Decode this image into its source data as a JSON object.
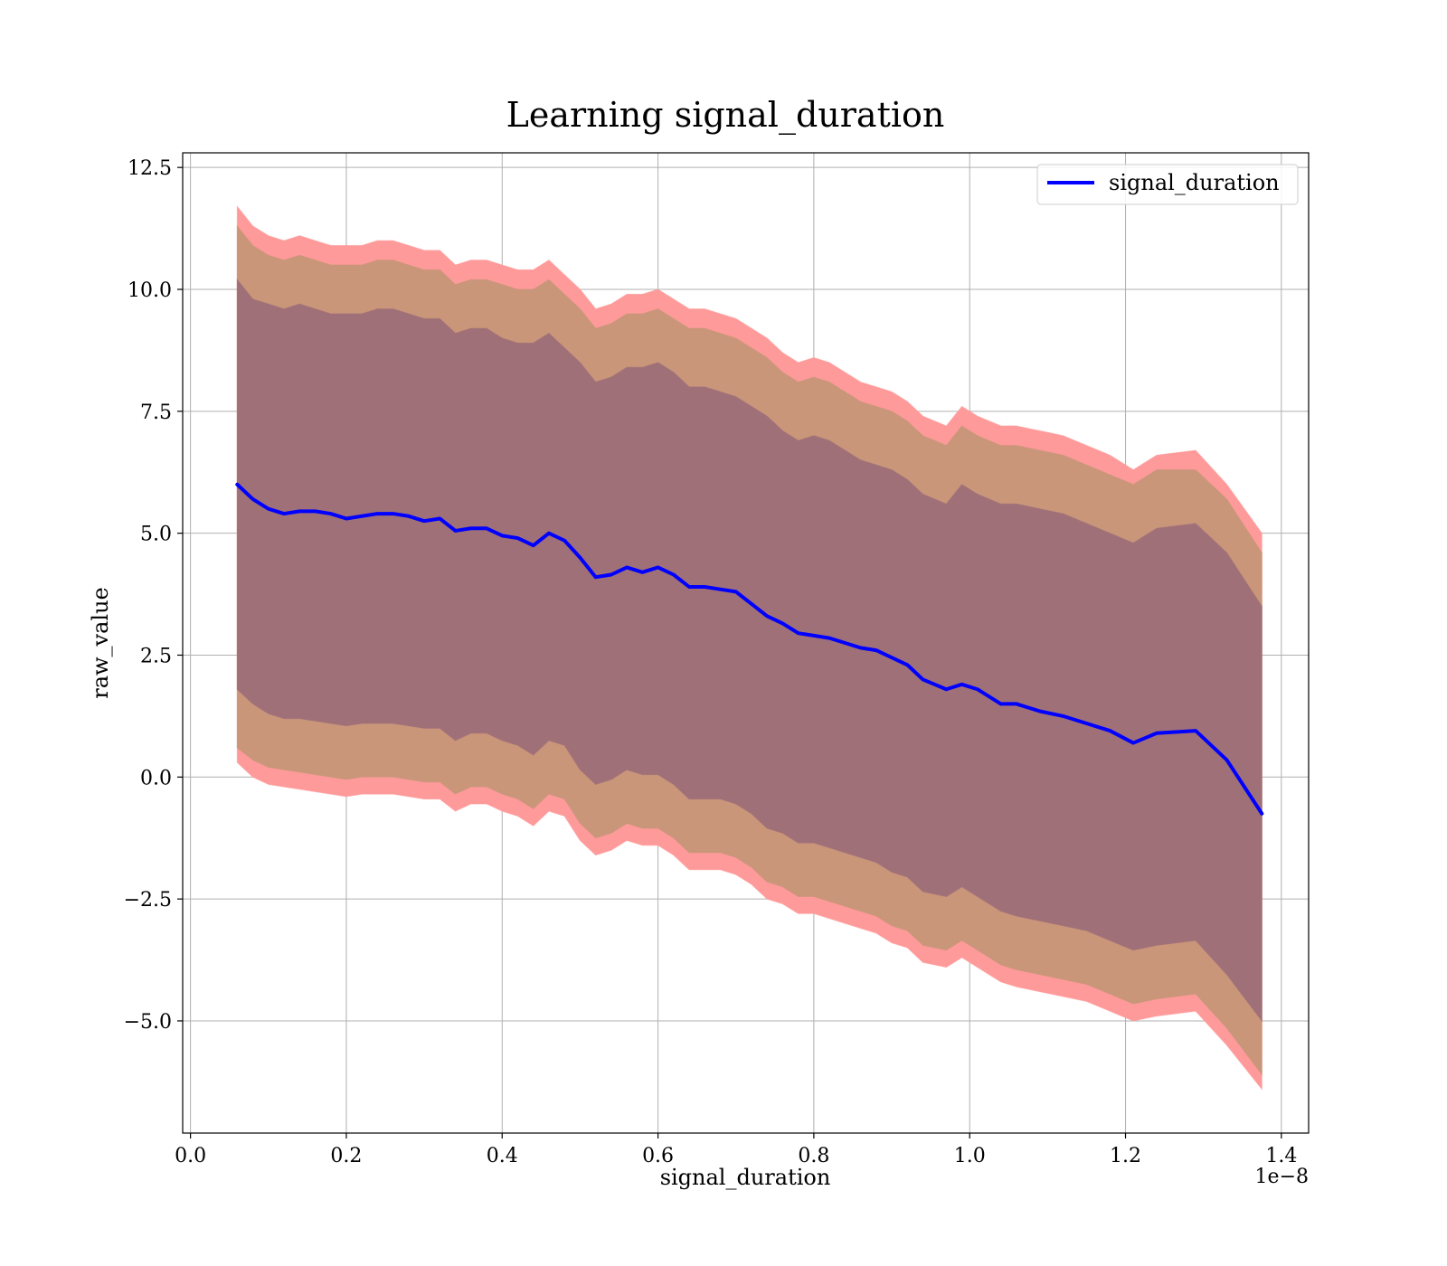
{
  "chart_data": {
    "type": "line",
    "title": "Learning signal_duration",
    "xlabel": "signal_duration",
    "ylabel": "raw_value",
    "x_offset_label": "1e−8",
    "xlim": [
      -0.01,
      1.435
    ],
    "ylim": [
      -7.3,
      12.8
    ],
    "x_ticks": [
      0.0,
      0.2,
      0.4,
      0.6,
      0.8,
      1.0,
      1.2,
      1.4
    ],
    "x_tick_labels": [
      "0.0",
      "0.2",
      "0.4",
      "0.6",
      "0.8",
      "1.0",
      "1.2",
      "1.4"
    ],
    "y_ticks": [
      -5.0,
      -2.5,
      0.0,
      2.5,
      5.0,
      7.5,
      10.0,
      12.5
    ],
    "y_tick_labels": [
      "−5.0",
      "−2.5",
      "0.0",
      "2.5",
      "5.0",
      "7.5",
      "10.0",
      "12.5"
    ],
    "grid": true,
    "legend_position": "top-right",
    "colors": {
      "line": "#0000ff",
      "band_outer": "#ff9a9a",
      "band_middle": "#c9967a",
      "band_inner": "#a07078"
    },
    "x": [
      0.06,
      0.08,
      0.1,
      0.12,
      0.14,
      0.16,
      0.18,
      0.2,
      0.22,
      0.24,
      0.26,
      0.28,
      0.3,
      0.32,
      0.34,
      0.36,
      0.38,
      0.4,
      0.42,
      0.44,
      0.46,
      0.48,
      0.5,
      0.52,
      0.54,
      0.56,
      0.58,
      0.6,
      0.62,
      0.64,
      0.66,
      0.68,
      0.7,
      0.72,
      0.74,
      0.76,
      0.78,
      0.8,
      0.82,
      0.84,
      0.86,
      0.88,
      0.9,
      0.92,
      0.94,
      0.97,
      0.99,
      1.01,
      1.04,
      1.06,
      1.09,
      1.12,
      1.15,
      1.18,
      1.21,
      1.24,
      1.29,
      1.33,
      1.375
    ],
    "series": [
      {
        "name": "signal_duration",
        "values": [
          6.0,
          5.7,
          5.5,
          5.4,
          5.45,
          5.45,
          5.4,
          5.3,
          5.35,
          5.4,
          5.4,
          5.35,
          5.25,
          5.3,
          5.05,
          5.1,
          5.1,
          4.95,
          4.9,
          4.75,
          5.0,
          4.85,
          4.5,
          4.1,
          4.15,
          4.3,
          4.2,
          4.3,
          4.15,
          3.9,
          3.9,
          3.85,
          3.8,
          3.55,
          3.3,
          3.15,
          2.95,
          2.9,
          2.85,
          2.75,
          2.65,
          2.6,
          2.45,
          2.3,
          2.0,
          1.8,
          1.9,
          1.8,
          1.5,
          1.5,
          1.35,
          1.25,
          1.1,
          0.95,
          0.7,
          0.9,
          0.95,
          0.35,
          -0.75
        ]
      }
    ],
    "bands": [
      {
        "upper": [
          11.7,
          11.3,
          11.1,
          11.0,
          11.1,
          11.0,
          10.9,
          10.9,
          10.9,
          11.0,
          11.0,
          10.9,
          10.8,
          10.8,
          10.5,
          10.6,
          10.6,
          10.5,
          10.4,
          10.4,
          10.6,
          10.3,
          10.0,
          9.6,
          9.7,
          9.9,
          9.9,
          10.0,
          9.8,
          9.6,
          9.6,
          9.5,
          9.4,
          9.2,
          9.0,
          8.7,
          8.5,
          8.6,
          8.5,
          8.3,
          8.1,
          8.0,
          7.9,
          7.7,
          7.4,
          7.2,
          7.6,
          7.4,
          7.2,
          7.2,
          7.1,
          7.0,
          6.8,
          6.6,
          6.3,
          6.6,
          6.7,
          6.0,
          5.0
        ],
        "lower": [
          0.3,
          0.0,
          -0.15,
          -0.2,
          -0.25,
          -0.3,
          -0.35,
          -0.4,
          -0.35,
          -0.35,
          -0.35,
          -0.4,
          -0.45,
          -0.45,
          -0.7,
          -0.55,
          -0.55,
          -0.7,
          -0.8,
          -1.0,
          -0.7,
          -0.8,
          -1.3,
          -1.6,
          -1.5,
          -1.3,
          -1.4,
          -1.4,
          -1.6,
          -1.9,
          -1.9,
          -1.9,
          -2.0,
          -2.2,
          -2.5,
          -2.6,
          -2.8,
          -2.8,
          -2.9,
          -3.0,
          -3.1,
          -3.2,
          -3.4,
          -3.5,
          -3.8,
          -3.9,
          -3.7,
          -3.9,
          -4.2,
          -4.3,
          -4.4,
          -4.5,
          -4.6,
          -4.8,
          -5.0,
          -4.9,
          -4.8,
          -5.5,
          -6.4
        ]
      },
      {
        "upper": [
          11.3,
          10.9,
          10.7,
          10.6,
          10.7,
          10.6,
          10.5,
          10.5,
          10.5,
          10.6,
          10.6,
          10.5,
          10.4,
          10.4,
          10.1,
          10.2,
          10.2,
          10.1,
          10.0,
          10.0,
          10.2,
          9.9,
          9.6,
          9.2,
          9.3,
          9.5,
          9.5,
          9.6,
          9.4,
          9.2,
          9.2,
          9.1,
          9.0,
          8.8,
          8.6,
          8.3,
          8.1,
          8.2,
          8.1,
          7.9,
          7.7,
          7.6,
          7.5,
          7.3,
          7.0,
          6.8,
          7.2,
          7.0,
          6.8,
          6.8,
          6.7,
          6.6,
          6.4,
          6.2,
          6.0,
          6.3,
          6.3,
          5.7,
          4.6
        ],
        "lower": [
          0.6,
          0.35,
          0.2,
          0.15,
          0.1,
          0.05,
          0.0,
          -0.05,
          0.0,
          0.0,
          0.0,
          -0.05,
          -0.1,
          -0.1,
          -0.35,
          -0.2,
          -0.2,
          -0.35,
          -0.45,
          -0.65,
          -0.35,
          -0.45,
          -0.95,
          -1.25,
          -1.15,
          -0.95,
          -1.05,
          -1.05,
          -1.25,
          -1.55,
          -1.55,
          -1.55,
          -1.65,
          -1.85,
          -2.15,
          -2.25,
          -2.45,
          -2.45,
          -2.55,
          -2.65,
          -2.75,
          -2.85,
          -3.05,
          -3.15,
          -3.45,
          -3.55,
          -3.35,
          -3.55,
          -3.85,
          -3.95,
          -4.05,
          -4.15,
          -4.25,
          -4.45,
          -4.65,
          -4.55,
          -4.45,
          -5.15,
          -6.1
        ]
      },
      {
        "upper": [
          10.2,
          9.8,
          9.7,
          9.6,
          9.7,
          9.6,
          9.5,
          9.5,
          9.5,
          9.6,
          9.6,
          9.5,
          9.4,
          9.4,
          9.1,
          9.2,
          9.2,
          9.0,
          8.9,
          8.9,
          9.1,
          8.8,
          8.5,
          8.1,
          8.2,
          8.4,
          8.4,
          8.5,
          8.3,
          8.0,
          8.0,
          7.9,
          7.8,
          7.6,
          7.4,
          7.1,
          6.9,
          7.0,
          6.9,
          6.7,
          6.5,
          6.4,
          6.3,
          6.1,
          5.8,
          5.6,
          6.0,
          5.8,
          5.6,
          5.6,
          5.5,
          5.4,
          5.2,
          5.0,
          4.8,
          5.1,
          5.2,
          4.6,
          3.5
        ],
        "lower": [
          1.8,
          1.5,
          1.3,
          1.2,
          1.2,
          1.15,
          1.1,
          1.05,
          1.1,
          1.1,
          1.1,
          1.05,
          1.0,
          1.0,
          0.75,
          0.9,
          0.9,
          0.75,
          0.65,
          0.45,
          0.75,
          0.65,
          0.15,
          -0.15,
          -0.05,
          0.15,
          0.05,
          0.05,
          -0.15,
          -0.45,
          -0.45,
          -0.45,
          -0.55,
          -0.75,
          -1.05,
          -1.15,
          -1.35,
          -1.35,
          -1.45,
          -1.55,
          -1.65,
          -1.75,
          -1.95,
          -2.05,
          -2.35,
          -2.45,
          -2.25,
          -2.45,
          -2.75,
          -2.85,
          -2.95,
          -3.05,
          -3.15,
          -3.35,
          -3.55,
          -3.45,
          -3.35,
          -4.05,
          -5.0
        ]
      }
    ]
  }
}
